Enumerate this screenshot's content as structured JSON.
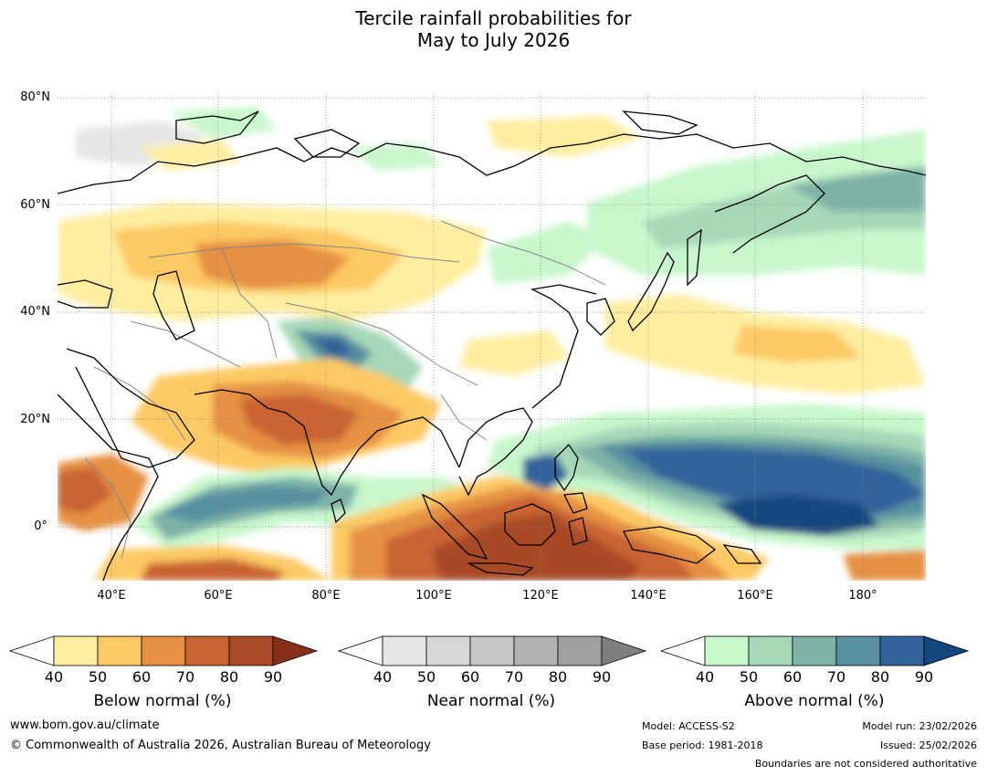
{
  "title": {
    "line1": "Tercile rainfall probabilities for",
    "line2": "May to July 2026"
  },
  "axes": {
    "y_ticks": [
      "80°N",
      "60°N",
      "40°N",
      "20°N",
      "0°"
    ],
    "x_ticks": [
      "40°E",
      "60°E",
      "80°E",
      "100°E",
      "120°E",
      "140°E",
      "160°E",
      "180°"
    ]
  },
  "colorbars": [
    {
      "label": "Below normal (%)",
      "ticks": [
        "40",
        "50",
        "60",
        "70",
        "80",
        "90"
      ],
      "colors": [
        "#ffeea0",
        "#fdc963",
        "#e59042",
        "#c96331",
        "#a84a27",
        "#853019"
      ]
    },
    {
      "label": "Near normal (%)",
      "ticks": [
        "40",
        "50",
        "60",
        "70",
        "80",
        "90"
      ],
      "colors": [
        "#e6e6e6",
        "#d7d7d7",
        "#c6c6c6",
        "#b2b2b2",
        "#9f9f9f",
        "#7f7f7f"
      ]
    },
    {
      "label": "Above normal (%)",
      "ticks": [
        "40",
        "50",
        "60",
        "70",
        "80",
        "90"
      ],
      "colors": [
        "#c8f7cc",
        "#a6d8b8",
        "#7db3a7",
        "#5890a0",
        "#33629a",
        "#13477f"
      ]
    }
  ],
  "footer": {
    "website": "www.bom.gov.au/climate",
    "copyright": "© Commonwealth of Australia 2026, Australian Bureau of Meteorology",
    "model": "Model: ACCESS-S2",
    "base_period": "Base period: 1981-2018",
    "model_run": "Model run: 23/02/2026",
    "issued": "Issued: 25/02/2026",
    "disclaimer": "Boundaries are not considered authoritative"
  },
  "colors": {
    "coastline": "#000000",
    "borders": "#888888",
    "grid": "#888888"
  }
}
